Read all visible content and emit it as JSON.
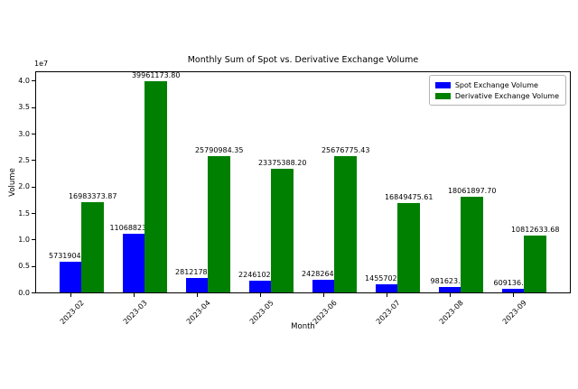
{
  "chart_data": {
    "type": "bar",
    "title": "Monthly Sum of Spot vs. Derivative Exchange Volume",
    "xlabel": "Month",
    "ylabel": "Volume",
    "y_offset_text": "1e7",
    "categories": [
      "2023-02",
      "2023-03",
      "2023-04",
      "2023-05",
      "2023-06",
      "2023-07",
      "2023-08",
      "2023-09"
    ],
    "series": [
      {
        "name": "Spot Exchange Volume",
        "color": "#0000ff",
        "values": [
          5731904.87,
          11068823.94,
          2812178.86,
          2246102.21,
          2428264.05,
          1455702.46,
          981623.05,
          609136.15
        ],
        "labels": [
          "5731904.87",
          "11068823.94",
          "2812178.86",
          "2246102.21",
          "2428264.05",
          "1455702.46",
          "981623.05",
          "609136.15"
        ]
      },
      {
        "name": "Derivative Exchange Volume",
        "color": "#008000",
        "values": [
          16983373.87,
          39961173.8,
          25790984.35,
          23375388.2,
          25676775.43,
          16849475.61,
          18061897.7,
          10812633.68
        ],
        "labels": [
          "16983373.87",
          "39961173.80",
          "25790984.35",
          "23375388.20",
          "25676775.43",
          "16849475.61",
          "18061897.70",
          "10812633.68"
        ]
      }
    ],
    "ylim": [
      0,
      41600000
    ],
    "yticks": [
      "0.0",
      "0.5",
      "1.0",
      "1.5",
      "2.0",
      "2.5",
      "3.0",
      "3.5",
      "4.0"
    ],
    "ytick_values": [
      0,
      5000000,
      10000000,
      15000000,
      20000000,
      25000000,
      30000000,
      35000000,
      40000000
    ],
    "legend": {
      "position": "upper right"
    },
    "grid": false
  }
}
